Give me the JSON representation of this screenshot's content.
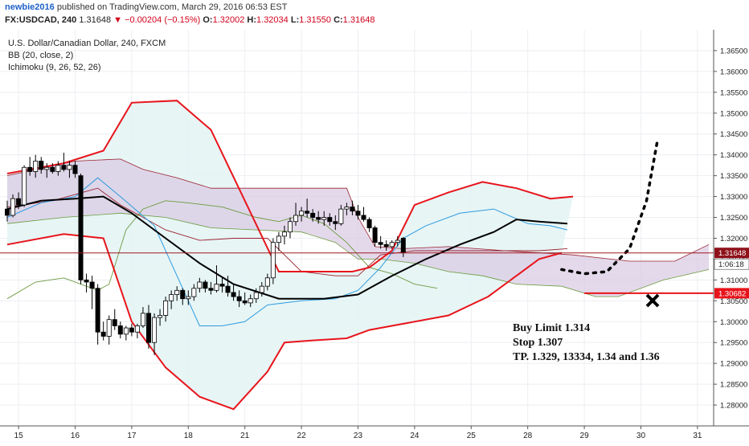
{
  "header": {
    "user": "newbie2016",
    "published": "published on TradingView.com, March 29, 2016 06:53 EST",
    "symbol": "FX:USDCAD, 240",
    "last": "1.31648",
    "change": "−0.00204 (−0.15%)",
    "open_label": "O:",
    "open": "1.32002",
    "high_label": "H:",
    "high": "1.32034",
    "low_label": "L:",
    "low": "1.31550",
    "close_label": "C:",
    "close": "1.31648"
  },
  "legend": {
    "title": "U.S. Dollar/Canadian Dollar, 240, FXCM",
    "bb": "BB (20, close, 2)",
    "ichimoku": "Ichimoku (9, 26, 52, 26)"
  },
  "badges": {
    "price": "1.31648",
    "countdown": "1:06:18",
    "stop": "1.30682"
  },
  "colors": {
    "bb_band": "#e8141b",
    "bb_mid": "#000000",
    "tenkan": "#2e9be0",
    "kijun": "#9b2230",
    "chikou": "#6b9a3f",
    "cloud_fill": "#d9c9e2",
    "bb_fill": "#e3f3f3",
    "price_line": "#a0181f",
    "stop_line": "#e8141b"
  },
  "annotation": {
    "line1": "Buy Limit 1.314",
    "line2": "Stop 1.307",
    "line3": "TP. 1.329, 13334, 1.34 and 1.36"
  },
  "chart_data": {
    "type": "candlestick",
    "title": "U.S. Dollar/Canadian Dollar, 240, FXCM",
    "y_axis": {
      "min": 1.275,
      "max": 1.37,
      "ticks": [
        "1.36500",
        "1.36000",
        "1.35500",
        "1.35000",
        "1.34500",
        "1.34000",
        "1.33500",
        "1.33000",
        "1.32500",
        "1.32000",
        "1.31500",
        "1.31000",
        "1.30500",
        "1.30000",
        "1.29500",
        "1.29000",
        "1.28500",
        "1.28000"
      ]
    },
    "x_axis": {
      "ticks": [
        "15",
        "16",
        "17",
        "18",
        "21",
        "22",
        "23",
        "24",
        "25",
        "28",
        "29",
        "30",
        "31"
      ]
    },
    "candles": [
      [
        1.327,
        1.329,
        1.324,
        1.3255
      ],
      [
        1.3255,
        1.3305,
        1.325,
        1.3295
      ],
      [
        1.3295,
        1.331,
        1.327,
        1.328
      ],
      [
        1.328,
        1.3375,
        1.3275,
        1.337
      ],
      [
        1.337,
        1.3395,
        1.335,
        1.336
      ],
      [
        1.336,
        1.34,
        1.3345,
        1.3385
      ],
      [
        1.3385,
        1.3395,
        1.3355,
        1.3365
      ],
      [
        1.3365,
        1.338,
        1.3345,
        1.337
      ],
      [
        1.337,
        1.338,
        1.3355,
        1.336
      ],
      [
        1.336,
        1.3385,
        1.335,
        1.3375
      ],
      [
        1.3375,
        1.3405,
        1.336,
        1.3365
      ],
      [
        1.3365,
        1.3385,
        1.3345,
        1.3375
      ],
      [
        1.3375,
        1.3385,
        1.3345,
        1.3355
      ],
      [
        1.335,
        1.3355,
        1.309,
        1.31
      ],
      [
        1.31,
        1.3115,
        1.307,
        1.3095
      ],
      [
        1.3095,
        1.311,
        1.303,
        1.308
      ],
      [
        1.308,
        1.309,
        1.2945,
        1.2975
      ],
      [
        1.2975,
        1.3,
        1.2955,
        1.2965
      ],
      [
        1.2965,
        1.3015,
        1.2945,
        1.3005
      ],
      [
        1.3005,
        1.303,
        1.298,
        1.299
      ],
      [
        1.299,
        1.3,
        1.296,
        1.297
      ],
      [
        1.297,
        1.299,
        1.2955,
        1.2985
      ],
      [
        1.2985,
        1.2995,
        1.2965,
        1.2975
      ],
      [
        1.2975,
        1.2995,
        1.296,
        1.299
      ],
      [
        1.299,
        1.3035,
        1.2985,
        1.302
      ],
      [
        1.302,
        1.304,
        1.2935,
        1.295
      ],
      [
        1.295,
        1.302,
        1.292,
        1.301
      ],
      [
        1.301,
        1.303,
        1.299,
        1.3015
      ],
      [
        1.3015,
        1.306,
        1.3,
        1.305
      ],
      [
        1.305,
        1.3075,
        1.303,
        1.3065
      ],
      [
        1.3065,
        1.3085,
        1.305,
        1.3075
      ],
      [
        1.3075,
        1.308,
        1.304,
        1.3055
      ],
      [
        1.3055,
        1.3075,
        1.304,
        1.306
      ],
      [
        1.306,
        1.309,
        1.305,
        1.308
      ],
      [
        1.308,
        1.3105,
        1.307,
        1.3095
      ],
      [
        1.3095,
        1.31,
        1.307,
        1.308
      ],
      [
        1.308,
        1.3095,
        1.3065,
        1.3075
      ],
      [
        1.3075,
        1.3135,
        1.307,
        1.309
      ],
      [
        1.309,
        1.3105,
        1.307,
        1.3085
      ],
      [
        1.3085,
        1.311,
        1.306,
        1.307
      ],
      [
        1.307,
        1.309,
        1.305,
        1.306
      ],
      [
        1.306,
        1.3075,
        1.3035,
        1.305
      ],
      [
        1.305,
        1.307,
        1.304,
        1.3045
      ],
      [
        1.3045,
        1.3065,
        1.3035,
        1.3055
      ],
      [
        1.3055,
        1.308,
        1.3045,
        1.307
      ],
      [
        1.307,
        1.3095,
        1.306,
        1.3085
      ],
      [
        1.3085,
        1.3115,
        1.3075,
        1.3105
      ],
      [
        1.3105,
        1.32,
        1.309,
        1.319
      ],
      [
        1.319,
        1.3215,
        1.317,
        1.3205
      ],
      [
        1.3205,
        1.323,
        1.3185,
        1.3215
      ],
      [
        1.3215,
        1.325,
        1.32,
        1.324
      ],
      [
        1.324,
        1.3285,
        1.323,
        1.3255
      ],
      [
        1.3255,
        1.3275,
        1.324,
        1.3265
      ],
      [
        1.3265,
        1.3295,
        1.325,
        1.326
      ],
      [
        1.326,
        1.327,
        1.324,
        1.325
      ],
      [
        1.325,
        1.3265,
        1.3235,
        1.3245
      ],
      [
        1.3245,
        1.3265,
        1.323,
        1.325
      ],
      [
        1.325,
        1.326,
        1.323,
        1.324
      ],
      [
        1.324,
        1.3255,
        1.322,
        1.3235
      ],
      [
        1.3235,
        1.328,
        1.323,
        1.327
      ],
      [
        1.327,
        1.3285,
        1.3255,
        1.3275
      ],
      [
        1.3275,
        1.329,
        1.3255,
        1.3265
      ],
      [
        1.3265,
        1.328,
        1.3245,
        1.3255
      ],
      [
        1.3255,
        1.3275,
        1.324,
        1.3245
      ],
      [
        1.3245,
        1.325,
        1.3215,
        1.3225
      ],
      [
        1.3225,
        1.323,
        1.318,
        1.319
      ],
      [
        1.319,
        1.3205,
        1.3175,
        1.3185
      ],
      [
        1.3185,
        1.3195,
        1.317,
        1.318
      ],
      [
        1.318,
        1.3195,
        1.3175,
        1.319
      ],
      [
        1.319,
        1.3205,
        1.318,
        1.3195
      ],
      [
        1.32,
        1.3203,
        1.3155,
        1.3165
      ]
    ],
    "series": {
      "bb_upper": [
        [
          0,
          1.3355
        ],
        [
          10,
          1.338
        ],
        [
          17,
          1.341
        ],
        [
          22,
          1.3525
        ],
        [
          30,
          1.353
        ],
        [
          36,
          1.346
        ],
        [
          42,
          1.329
        ],
        [
          48,
          1.312
        ],
        [
          54,
          1.312
        ],
        [
          61,
          1.312
        ],
        [
          64,
          1.313
        ],
        [
          68,
          1.317
        ],
        [
          72,
          1.328
        ],
        [
          78,
          1.331
        ],
        [
          84,
          1.3335
        ],
        [
          90,
          1.332
        ],
        [
          96,
          1.3295
        ],
        [
          100,
          1.33
        ]
      ],
      "bb_mid": [
        [
          0,
          1.327
        ],
        [
          6,
          1.329
        ],
        [
          12,
          1.3295
        ],
        [
          17,
          1.33
        ],
        [
          22,
          1.326
        ],
        [
          28,
          1.32
        ],
        [
          34,
          1.314
        ],
        [
          40,
          1.309
        ],
        [
          48,
          1.3055
        ],
        [
          56,
          1.3055
        ],
        [
          62,
          1.3065
        ],
        [
          68,
          1.311
        ],
        [
          74,
          1.315
        ],
        [
          80,
          1.3185
        ],
        [
          86,
          1.3215
        ],
        [
          90,
          1.3245
        ],
        [
          94,
          1.324
        ],
        [
          99,
          1.3235
        ]
      ],
      "bb_lower": [
        [
          0,
          1.3185
        ],
        [
          10,
          1.321
        ],
        [
          17,
          1.32
        ],
        [
          22,
          1.3
        ],
        [
          28,
          1.289
        ],
        [
          34,
          1.282
        ],
        [
          40,
          1.279
        ],
        [
          46,
          1.288
        ],
        [
          49,
          1.295
        ],
        [
          54,
          1.2955
        ],
        [
          60,
          1.296
        ],
        [
          64,
          1.298
        ],
        [
          70,
          1.2995
        ],
        [
          78,
          1.3015
        ],
        [
          85,
          1.306
        ],
        [
          90,
          1.311
        ],
        [
          94,
          1.315
        ],
        [
          98,
          1.3165
        ]
      ],
      "tenkan": [
        [
          0,
          1.325
        ],
        [
          6,
          1.3285
        ],
        [
          12,
          1.33
        ],
        [
          16,
          1.3345
        ],
        [
          20,
          1.33
        ],
        [
          26,
          1.323
        ],
        [
          30,
          1.311
        ],
        [
          34,
          1.299
        ],
        [
          38,
          1.299
        ],
        [
          42,
          1.3
        ],
        [
          46,
          1.304
        ],
        [
          52,
          1.305
        ],
        [
          58,
          1.3055
        ],
        [
          62,
          1.3075
        ],
        [
          66,
          1.313
        ],
        [
          70,
          1.32
        ],
        [
          74,
          1.323
        ],
        [
          80,
          1.326
        ],
        [
          86,
          1.327
        ],
        [
          92,
          1.3235
        ],
        [
          96,
          1.323
        ],
        [
          99,
          1.322
        ]
      ],
      "kijun": [
        [
          0,
          1.3275
        ],
        [
          8,
          1.329
        ],
        [
          16,
          1.332
        ],
        [
          20,
          1.328
        ],
        [
          28,
          1.322
        ],
        [
          34,
          1.3195
        ],
        [
          40,
          1.32
        ],
        [
          46,
          1.32
        ],
        [
          52,
          1.312
        ],
        [
          58,
          1.311
        ],
        [
          62,
          1.311
        ],
        [
          66,
          1.316
        ],
        [
          72,
          1.317
        ],
        [
          80,
          1.317
        ],
        [
          88,
          1.317
        ],
        [
          94,
          1.317
        ],
        [
          99,
          1.3175
        ]
      ],
      "chikou": [
        [
          0,
          1.3055
        ],
        [
          5,
          1.3095
        ],
        [
          10,
          1.3105
        ],
        [
          16,
          1.3075
        ],
        [
          18,
          1.309
        ],
        [
          21,
          1.322
        ],
        [
          24,
          1.327
        ],
        [
          28,
          1.329
        ],
        [
          32,
          1.3285
        ],
        [
          38,
          1.3275
        ],
        [
          44,
          1.325
        ],
        [
          48,
          1.324
        ],
        [
          52,
          1.3255
        ],
        [
          56,
          1.3235
        ],
        [
          60,
          1.319
        ],
        [
          64,
          1.313
        ],
        [
          68,
          1.3115
        ],
        [
          72,
          1.309
        ],
        [
          76,
          1.308
        ]
      ],
      "cloud_a": [
        [
          0,
          1.335
        ],
        [
          12,
          1.3385
        ],
        [
          20,
          1.339
        ],
        [
          24,
          1.3365
        ],
        [
          30,
          1.3345
        ],
        [
          36,
          1.332
        ],
        [
          44,
          1.332
        ],
        [
          52,
          1.332
        ],
        [
          60,
          1.332
        ],
        [
          62,
          1.325
        ],
        [
          65,
          1.318
        ],
        [
          70,
          1.3175
        ],
        [
          78,
          1.318
        ],
        [
          88,
          1.317
        ],
        [
          100,
          1.316
        ],
        [
          110,
          1.3145
        ],
        [
          118,
          1.3145
        ],
        [
          124,
          1.3185
        ]
      ],
      "cloud_b": [
        [
          0,
          1.3235
        ],
        [
          10,
          1.325
        ],
        [
          20,
          1.326
        ],
        [
          28,
          1.325
        ],
        [
          36,
          1.3225
        ],
        [
          44,
          1.322
        ],
        [
          52,
          1.3215
        ],
        [
          58,
          1.319
        ],
        [
          62,
          1.315
        ],
        [
          66,
          1.315
        ],
        [
          72,
          1.314
        ],
        [
          78,
          1.312
        ],
        [
          84,
          1.311
        ],
        [
          90,
          1.309
        ],
        [
          98,
          1.3085
        ],
        [
          104,
          1.306
        ],
        [
          108,
          1.306
        ],
        [
          116,
          1.31
        ],
        [
          124,
          1.3125
        ]
      ],
      "projection": [
        [
          98,
          1.3125
        ],
        [
          102,
          1.3115
        ],
        [
          106,
          1.312
        ],
        [
          110,
          1.3175
        ],
        [
          113,
          1.329
        ],
        [
          115,
          1.344
        ]
      ]
    },
    "levels": {
      "last": 1.31648,
      "buy_limit": 1.314,
      "stop": 1.30682
    }
  }
}
